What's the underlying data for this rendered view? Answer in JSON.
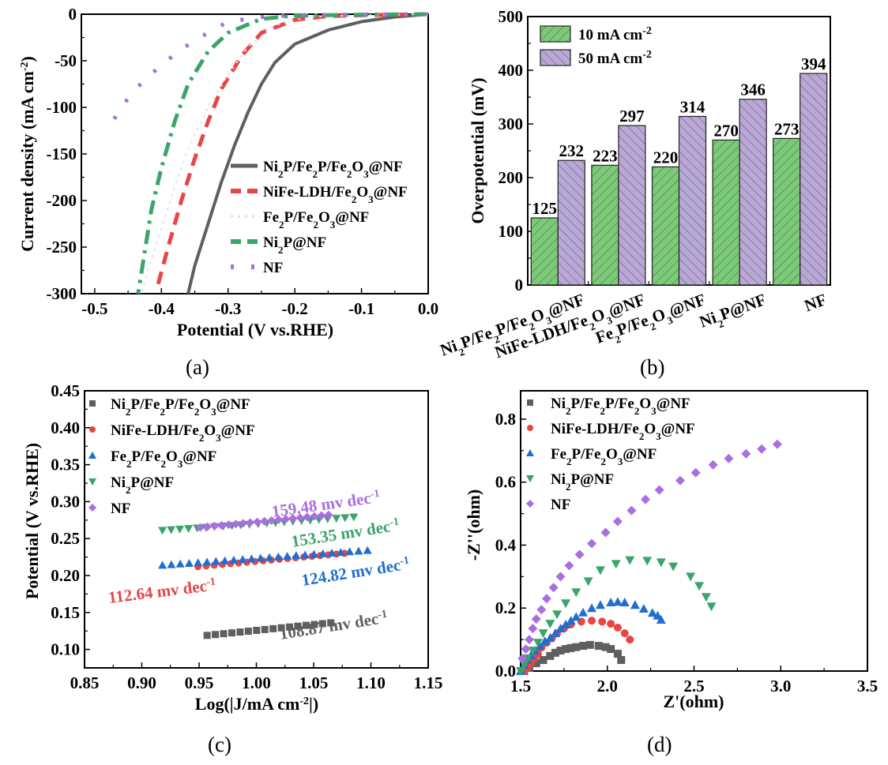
{
  "series_names": [
    "Ni2P/Fe2P/Fe2O3@NF",
    "NiFe-LDH/Fe2O3@NF",
    "Fe2P/Fe2O3@NF",
    "Ni2P@NF",
    "NF"
  ],
  "colors": {
    "Ni2P/Fe2P/Fe2O3@NF": "#5f5f5f",
    "NiFe-LDH/Fe2O3@NF": "#e84545",
    "Fe2P/Fe2O3@NF": "#1f6fd1",
    "Ni2P@NF": "#3aa56a",
    "NF": "#a96ee0",
    "Fe2P_lsv_faint": "#cfe3ef",
    "bar_green": "#7dc97a",
    "bar_purple": "#b9a8d6"
  },
  "chart_data": [
    {
      "panel": "(a)",
      "type": "line",
      "xlabel": "Potential (V vs.RHE)",
      "ylabel": "Current density (mA cm-2)",
      "xlim": [
        -0.52,
        0.0
      ],
      "ylim": [
        -300,
        0
      ],
      "xticks": [
        "-0.5",
        "-0.4",
        "-0.3",
        "-0.2",
        "-0.1",
        "0.0"
      ],
      "xtick_values": [
        -0.5,
        -0.4,
        -0.3,
        -0.2,
        -0.1,
        0.0
      ],
      "yticks": [
        "0",
        "-50",
        "-100",
        "-150",
        "-200",
        "-250",
        "-300"
      ],
      "ytick_values": [
        0,
        -50,
        -100,
        -150,
        -200,
        -250,
        -300
      ],
      "legend_position": "center-right",
      "series": [
        {
          "name": "Ni2P/Fe2P/Fe2O3@NF",
          "style": "solid",
          "x": [
            0.0,
            -0.05,
            -0.1,
            -0.15,
            -0.2,
            -0.23,
            -0.25,
            -0.27,
            -0.29,
            -0.31,
            -0.33,
            -0.35,
            -0.36
          ],
          "y": [
            0,
            -3,
            -8,
            -17,
            -32,
            -52,
            -75,
            -105,
            -140,
            -180,
            -225,
            -270,
            -300
          ]
        },
        {
          "name": "NiFe-LDH/Fe2O3@NF",
          "style": "dash",
          "x": [
            0.0,
            -0.1,
            -0.15,
            -0.2,
            -0.25,
            -0.28,
            -0.31,
            -0.33,
            -0.35,
            -0.37,
            -0.39,
            -0.405
          ],
          "y": [
            0,
            -1,
            -2,
            -6,
            -20,
            -45,
            -80,
            -115,
            -155,
            -200,
            -250,
            -290
          ]
        },
        {
          "name": "Fe2P/Fe2O3@NF",
          "style": "dot",
          "x": [
            0.0,
            -0.1,
            -0.18,
            -0.23,
            -0.27,
            -0.3,
            -0.33,
            -0.36,
            -0.38,
            -0.4,
            -0.42,
            -0.43
          ],
          "y": [
            0,
            -1,
            -3,
            -12,
            -35,
            -65,
            -100,
            -145,
            -185,
            -230,
            -275,
            -300
          ]
        },
        {
          "name": "Ni2P@NF",
          "style": "dashdot",
          "x": [
            0.0,
            -0.1,
            -0.2,
            -0.25,
            -0.3,
            -0.33,
            -0.36,
            -0.38,
            -0.4,
            -0.415,
            -0.425,
            -0.435
          ],
          "y": [
            0,
            -0.5,
            -1.5,
            -5,
            -20,
            -40,
            -75,
            -115,
            -165,
            -210,
            -255,
            -300
          ]
        },
        {
          "name": "NF",
          "style": "dot-sparse",
          "x": [
            0.0,
            -0.1,
            -0.2,
            -0.25,
            -0.3,
            -0.35,
            -0.38,
            -0.41,
            -0.44,
            -0.46,
            -0.48
          ],
          "y": [
            0,
            -0.5,
            -1,
            -3,
            -8,
            -28,
            -43,
            -61,
            -81,
            -100,
            -123
          ]
        }
      ]
    },
    {
      "panel": "(b)",
      "type": "bar",
      "ylabel": "Overpotential (mV)",
      "xlabel": "",
      "ylim": [
        0,
        500
      ],
      "yticks": [
        "0",
        "100",
        "200",
        "300",
        "400",
        "500"
      ],
      "ytick_values": [
        0,
        100,
        200,
        300,
        400,
        500
      ],
      "categories": [
        "Ni2P/Fe2P/Fe2O3@NF",
        "NiFe-LDH/Fe2O3@NF",
        "Fe2P/Fe2O3@NF",
        "Ni2P@NF",
        "NF"
      ],
      "legend_position": "top-left",
      "series": [
        {
          "name": "10 mA cm-2",
          "values": [
            125,
            223,
            220,
            270,
            273
          ],
          "hatch": "forward"
        },
        {
          "name": "50 mA cm-2",
          "values": [
            232,
            297,
            314,
            346,
            394
          ],
          "hatch": "backward"
        }
      ]
    },
    {
      "panel": "(c)",
      "type": "scatter",
      "xlabel": "Log(|J/mA cm-2|)",
      "ylabel": "Potential (V vs.RHE)",
      "xlim": [
        0.85,
        1.15
      ],
      "ylim": [
        0.075,
        0.45
      ],
      "xticks": [
        "0.85",
        "0.90",
        "0.95",
        "1.00",
        "1.05",
        "1.10",
        "1.15"
      ],
      "xtick_values": [
        0.85,
        0.9,
        0.95,
        1.0,
        1.05,
        1.1,
        1.15
      ],
      "yticks": [
        "0.10",
        "0.15",
        "0.20",
        "0.25",
        "0.30",
        "0.35",
        "0.40",
        "0.45"
      ],
      "ytick_values": [
        0.1,
        0.15,
        0.2,
        0.25,
        0.3,
        0.35,
        0.4,
        0.45
      ],
      "legend_position": "top-left",
      "series": [
        {
          "name": "Ni2P/Fe2P/Fe2O3@NF",
          "marker": "square",
          "x_start": 0.957,
          "x_end": 1.065,
          "n": 16,
          "y_start": 0.119,
          "y_end": 0.136,
          "slope_label": "108.87 mv dec-1"
        },
        {
          "name": "NiFe-LDH/Fe2O3@NF",
          "marker": "circle",
          "x_start": 0.949,
          "x_end": 1.077,
          "n": 19,
          "y_start": 0.212,
          "y_end": 0.23,
          "slope_label": "112.64 mv dec-1"
        },
        {
          "name": "Fe2P/Fe2O3@NF",
          "marker": "triangle-up",
          "x_start": 0.918,
          "x_end": 1.097,
          "n": 24,
          "y_start": 0.214,
          "y_end": 0.234,
          "slope_label": "124.82 mv dec-1"
        },
        {
          "name": "Ni2P@NF",
          "marker": "triangle-down",
          "x_start": 0.918,
          "x_end": 1.085,
          "n": 23,
          "y_start": 0.261,
          "y_end": 0.279,
          "slope_label": "153.35 mv dec-1"
        },
        {
          "name": "NF",
          "marker": "diamond",
          "x_start": 0.951,
          "x_end": 1.063,
          "n": 19,
          "y_start": 0.265,
          "y_end": 0.282,
          "slope_label": "159.48 mv dec-1"
        }
      ]
    },
    {
      "panel": "(d)",
      "type": "scatter",
      "xlabel": "Z'(ohm)",
      "ylabel": "-Z''(ohm)",
      "xlim": [
        1.5,
        3.5
      ],
      "ylim": [
        0.0,
        0.89
      ],
      "xticks": [
        "1.5",
        "2.0",
        "2.5",
        "3.0",
        "3.5"
      ],
      "xtick_values": [
        1.5,
        2.0,
        2.5,
        3.0,
        3.5
      ],
      "yticks": [
        "0.0",
        "0.2",
        "0.4",
        "0.6",
        "0.8"
      ],
      "ytick_values": [
        0.0,
        0.2,
        0.4,
        0.6,
        0.8
      ],
      "legend_position": "top-left",
      "series": [
        {
          "name": "Ni2P/Fe2P/Fe2O3@NF",
          "marker": "square",
          "x": [
            1.52,
            1.55,
            1.59,
            1.63,
            1.67,
            1.7,
            1.73,
            1.76,
            1.79,
            1.82,
            1.86,
            1.9,
            1.95,
            1.99,
            2.02,
            2.06,
            2.08
          ],
          "y": [
            0.0,
            0.01,
            0.025,
            0.035,
            0.048,
            0.058,
            0.065,
            0.07,
            0.073,
            0.076,
            0.08,
            0.083,
            0.08,
            0.076,
            0.07,
            0.055,
            0.035
          ]
        },
        {
          "name": "NiFe-LDH/Fe2O3@NF",
          "marker": "circle",
          "x": [
            1.52,
            1.54,
            1.56,
            1.58,
            1.6,
            1.62,
            1.65,
            1.68,
            1.71,
            1.75,
            1.79,
            1.85,
            1.91,
            1.97,
            2.02,
            2.06,
            2.1,
            2.13
          ],
          "y": [
            0.0,
            0.01,
            0.025,
            0.04,
            0.055,
            0.075,
            0.09,
            0.105,
            0.12,
            0.135,
            0.148,
            0.157,
            0.16,
            0.157,
            0.15,
            0.138,
            0.12,
            0.1
          ]
        },
        {
          "name": "Fe2P/Fe2O3@NF",
          "marker": "triangle-up",
          "x": [
            1.5,
            1.52,
            1.54,
            1.56,
            1.58,
            1.61,
            1.64,
            1.67,
            1.7,
            1.73,
            1.76,
            1.79,
            1.82,
            1.86,
            1.91,
            1.96,
            2.02,
            2.06,
            2.1,
            2.16,
            2.21,
            2.26,
            2.29,
            2.31
          ],
          "y": [
            0.0,
            0.02,
            0.035,
            0.05,
            0.065,
            0.08,
            0.095,
            0.105,
            0.12,
            0.135,
            0.148,
            0.16,
            0.172,
            0.186,
            0.2,
            0.21,
            0.218,
            0.22,
            0.218,
            0.21,
            0.198,
            0.185,
            0.176,
            0.163
          ]
        },
        {
          "name": "Ni2P@NF",
          "marker": "triangle-down",
          "x": [
            1.5,
            1.52,
            1.54,
            1.57,
            1.6,
            1.63,
            1.67,
            1.71,
            1.76,
            1.82,
            1.89,
            1.96,
            2.05,
            2.13,
            2.23,
            2.31,
            2.38,
            2.48,
            2.53,
            2.57,
            2.6
          ],
          "y": [
            0.0,
            0.02,
            0.04,
            0.065,
            0.09,
            0.12,
            0.15,
            0.18,
            0.215,
            0.25,
            0.285,
            0.32,
            0.34,
            0.352,
            0.35,
            0.345,
            0.332,
            0.3,
            0.27,
            0.235,
            0.205
          ]
        },
        {
          "name": "NF",
          "marker": "diamond",
          "x": [
            1.51,
            1.53,
            1.55,
            1.57,
            1.59,
            1.62,
            1.65,
            1.69,
            1.73,
            1.78,
            1.84,
            1.91,
            1.99,
            2.06,
            2.14,
            2.22,
            2.3,
            2.42,
            2.51,
            2.61,
            2.7,
            2.8,
            2.89,
            2.98
          ],
          "y": [
            0.04,
            0.07,
            0.1,
            0.135,
            0.165,
            0.195,
            0.23,
            0.265,
            0.3,
            0.335,
            0.37,
            0.405,
            0.44,
            0.475,
            0.51,
            0.545,
            0.575,
            0.605,
            0.63,
            0.655,
            0.675,
            0.69,
            0.705,
            0.72
          ]
        }
      ]
    }
  ],
  "panel_labels": [
    "(a)",
    "(b)",
    "(c)",
    "(d)"
  ]
}
